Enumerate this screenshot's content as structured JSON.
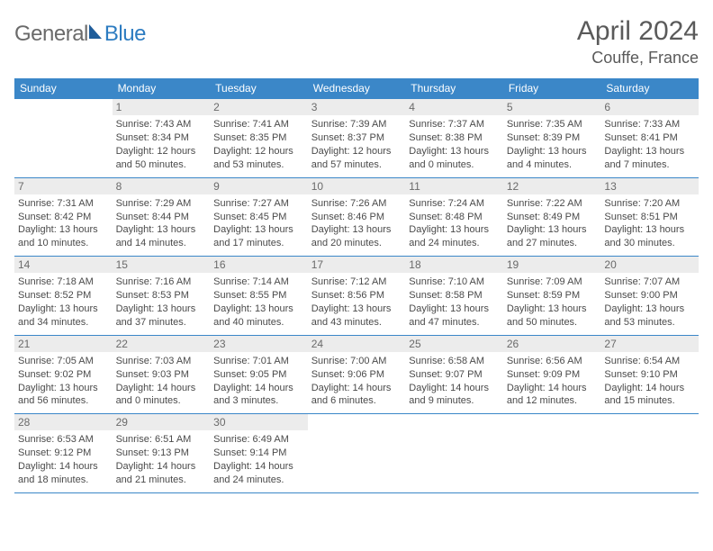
{
  "logo": {
    "text1": "General",
    "text2": "Blue",
    "color1": "#6a6a6a",
    "color2": "#2d7cc1",
    "sail_fill": "#1f5d9b"
  },
  "title": "April 2024",
  "location": "Couffe, France",
  "colors": {
    "header_bg": "#3b87c8",
    "header_text": "#ffffff",
    "border": "#3b87c8",
    "daynum_bg": "#ececec",
    "daynum_text": "#6a6a6a",
    "body_text": "#4a4a4a"
  },
  "weekdays": [
    "Sunday",
    "Monday",
    "Tuesday",
    "Wednesday",
    "Thursday",
    "Friday",
    "Saturday"
  ],
  "start_offset": 1,
  "days": [
    {
      "n": 1,
      "sunrise": "7:43 AM",
      "sunset": "8:34 PM",
      "daylight": "12 hours and 50 minutes."
    },
    {
      "n": 2,
      "sunrise": "7:41 AM",
      "sunset": "8:35 PM",
      "daylight": "12 hours and 53 minutes."
    },
    {
      "n": 3,
      "sunrise": "7:39 AM",
      "sunset": "8:37 PM",
      "daylight": "12 hours and 57 minutes."
    },
    {
      "n": 4,
      "sunrise": "7:37 AM",
      "sunset": "8:38 PM",
      "daylight": "13 hours and 0 minutes."
    },
    {
      "n": 5,
      "sunrise": "7:35 AM",
      "sunset": "8:39 PM",
      "daylight": "13 hours and 4 minutes."
    },
    {
      "n": 6,
      "sunrise": "7:33 AM",
      "sunset": "8:41 PM",
      "daylight": "13 hours and 7 minutes."
    },
    {
      "n": 7,
      "sunrise": "7:31 AM",
      "sunset": "8:42 PM",
      "daylight": "13 hours and 10 minutes."
    },
    {
      "n": 8,
      "sunrise": "7:29 AM",
      "sunset": "8:44 PM",
      "daylight": "13 hours and 14 minutes."
    },
    {
      "n": 9,
      "sunrise": "7:27 AM",
      "sunset": "8:45 PM",
      "daylight": "13 hours and 17 minutes."
    },
    {
      "n": 10,
      "sunrise": "7:26 AM",
      "sunset": "8:46 PM",
      "daylight": "13 hours and 20 minutes."
    },
    {
      "n": 11,
      "sunrise": "7:24 AM",
      "sunset": "8:48 PM",
      "daylight": "13 hours and 24 minutes."
    },
    {
      "n": 12,
      "sunrise": "7:22 AM",
      "sunset": "8:49 PM",
      "daylight": "13 hours and 27 minutes."
    },
    {
      "n": 13,
      "sunrise": "7:20 AM",
      "sunset": "8:51 PM",
      "daylight": "13 hours and 30 minutes."
    },
    {
      "n": 14,
      "sunrise": "7:18 AM",
      "sunset": "8:52 PM",
      "daylight": "13 hours and 34 minutes."
    },
    {
      "n": 15,
      "sunrise": "7:16 AM",
      "sunset": "8:53 PM",
      "daylight": "13 hours and 37 minutes."
    },
    {
      "n": 16,
      "sunrise": "7:14 AM",
      "sunset": "8:55 PM",
      "daylight": "13 hours and 40 minutes."
    },
    {
      "n": 17,
      "sunrise": "7:12 AM",
      "sunset": "8:56 PM",
      "daylight": "13 hours and 43 minutes."
    },
    {
      "n": 18,
      "sunrise": "7:10 AM",
      "sunset": "8:58 PM",
      "daylight": "13 hours and 47 minutes."
    },
    {
      "n": 19,
      "sunrise": "7:09 AM",
      "sunset": "8:59 PM",
      "daylight": "13 hours and 50 minutes."
    },
    {
      "n": 20,
      "sunrise": "7:07 AM",
      "sunset": "9:00 PM",
      "daylight": "13 hours and 53 minutes."
    },
    {
      "n": 21,
      "sunrise": "7:05 AM",
      "sunset": "9:02 PM",
      "daylight": "13 hours and 56 minutes."
    },
    {
      "n": 22,
      "sunrise": "7:03 AM",
      "sunset": "9:03 PM",
      "daylight": "14 hours and 0 minutes."
    },
    {
      "n": 23,
      "sunrise": "7:01 AM",
      "sunset": "9:05 PM",
      "daylight": "14 hours and 3 minutes."
    },
    {
      "n": 24,
      "sunrise": "7:00 AM",
      "sunset": "9:06 PM",
      "daylight": "14 hours and 6 minutes."
    },
    {
      "n": 25,
      "sunrise": "6:58 AM",
      "sunset": "9:07 PM",
      "daylight": "14 hours and 9 minutes."
    },
    {
      "n": 26,
      "sunrise": "6:56 AM",
      "sunset": "9:09 PM",
      "daylight": "14 hours and 12 minutes."
    },
    {
      "n": 27,
      "sunrise": "6:54 AM",
      "sunset": "9:10 PM",
      "daylight": "14 hours and 15 minutes."
    },
    {
      "n": 28,
      "sunrise": "6:53 AM",
      "sunset": "9:12 PM",
      "daylight": "14 hours and 18 minutes."
    },
    {
      "n": 29,
      "sunrise": "6:51 AM",
      "sunset": "9:13 PM",
      "daylight": "14 hours and 21 minutes."
    },
    {
      "n": 30,
      "sunrise": "6:49 AM",
      "sunset": "9:14 PM",
      "daylight": "14 hours and 24 minutes."
    }
  ],
  "labels": {
    "sunrise": "Sunrise:",
    "sunset": "Sunset:",
    "daylight": "Daylight:"
  }
}
